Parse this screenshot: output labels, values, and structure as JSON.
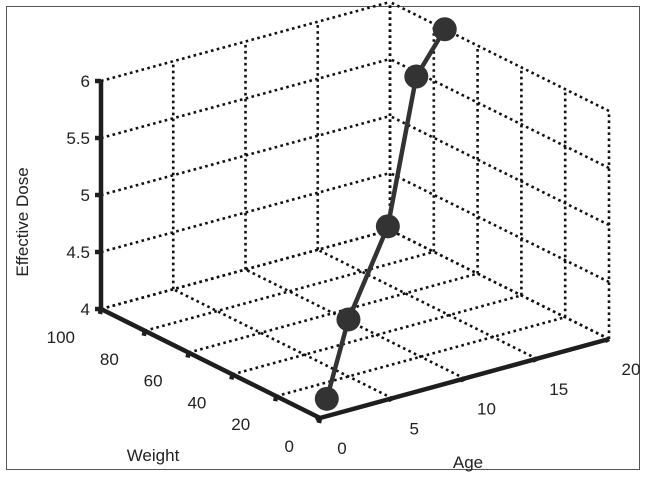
{
  "chart_data": {
    "type": "line3d",
    "xlabel": "Age",
    "ylabel": "Weight",
    "zlabel": "Effective Dose",
    "xlim": [
      0,
      20
    ],
    "ylim": [
      0,
      100
    ],
    "zlim": [
      4,
      6
    ],
    "x_ticks": [
      "0",
      "5",
      "10",
      "15",
      "20"
    ],
    "y_ticks": [
      "0",
      "20",
      "40",
      "60",
      "80",
      "100"
    ],
    "z_ticks": [
      "4",
      "4.5",
      "5",
      "5.5",
      "6"
    ],
    "grid": true,
    "colors": {
      "series": "#333333",
      "axis": "#1e1e1e",
      "grid": "#111111"
    },
    "series": [
      {
        "x": [
          1,
          5,
          10,
          15,
          20
        ],
        "y": [
          3.5,
          20,
          35,
          55,
          75
        ],
        "z": [
          4.1,
          4.5,
          5.0,
          5.95,
          6.0
        ]
      }
    ]
  }
}
